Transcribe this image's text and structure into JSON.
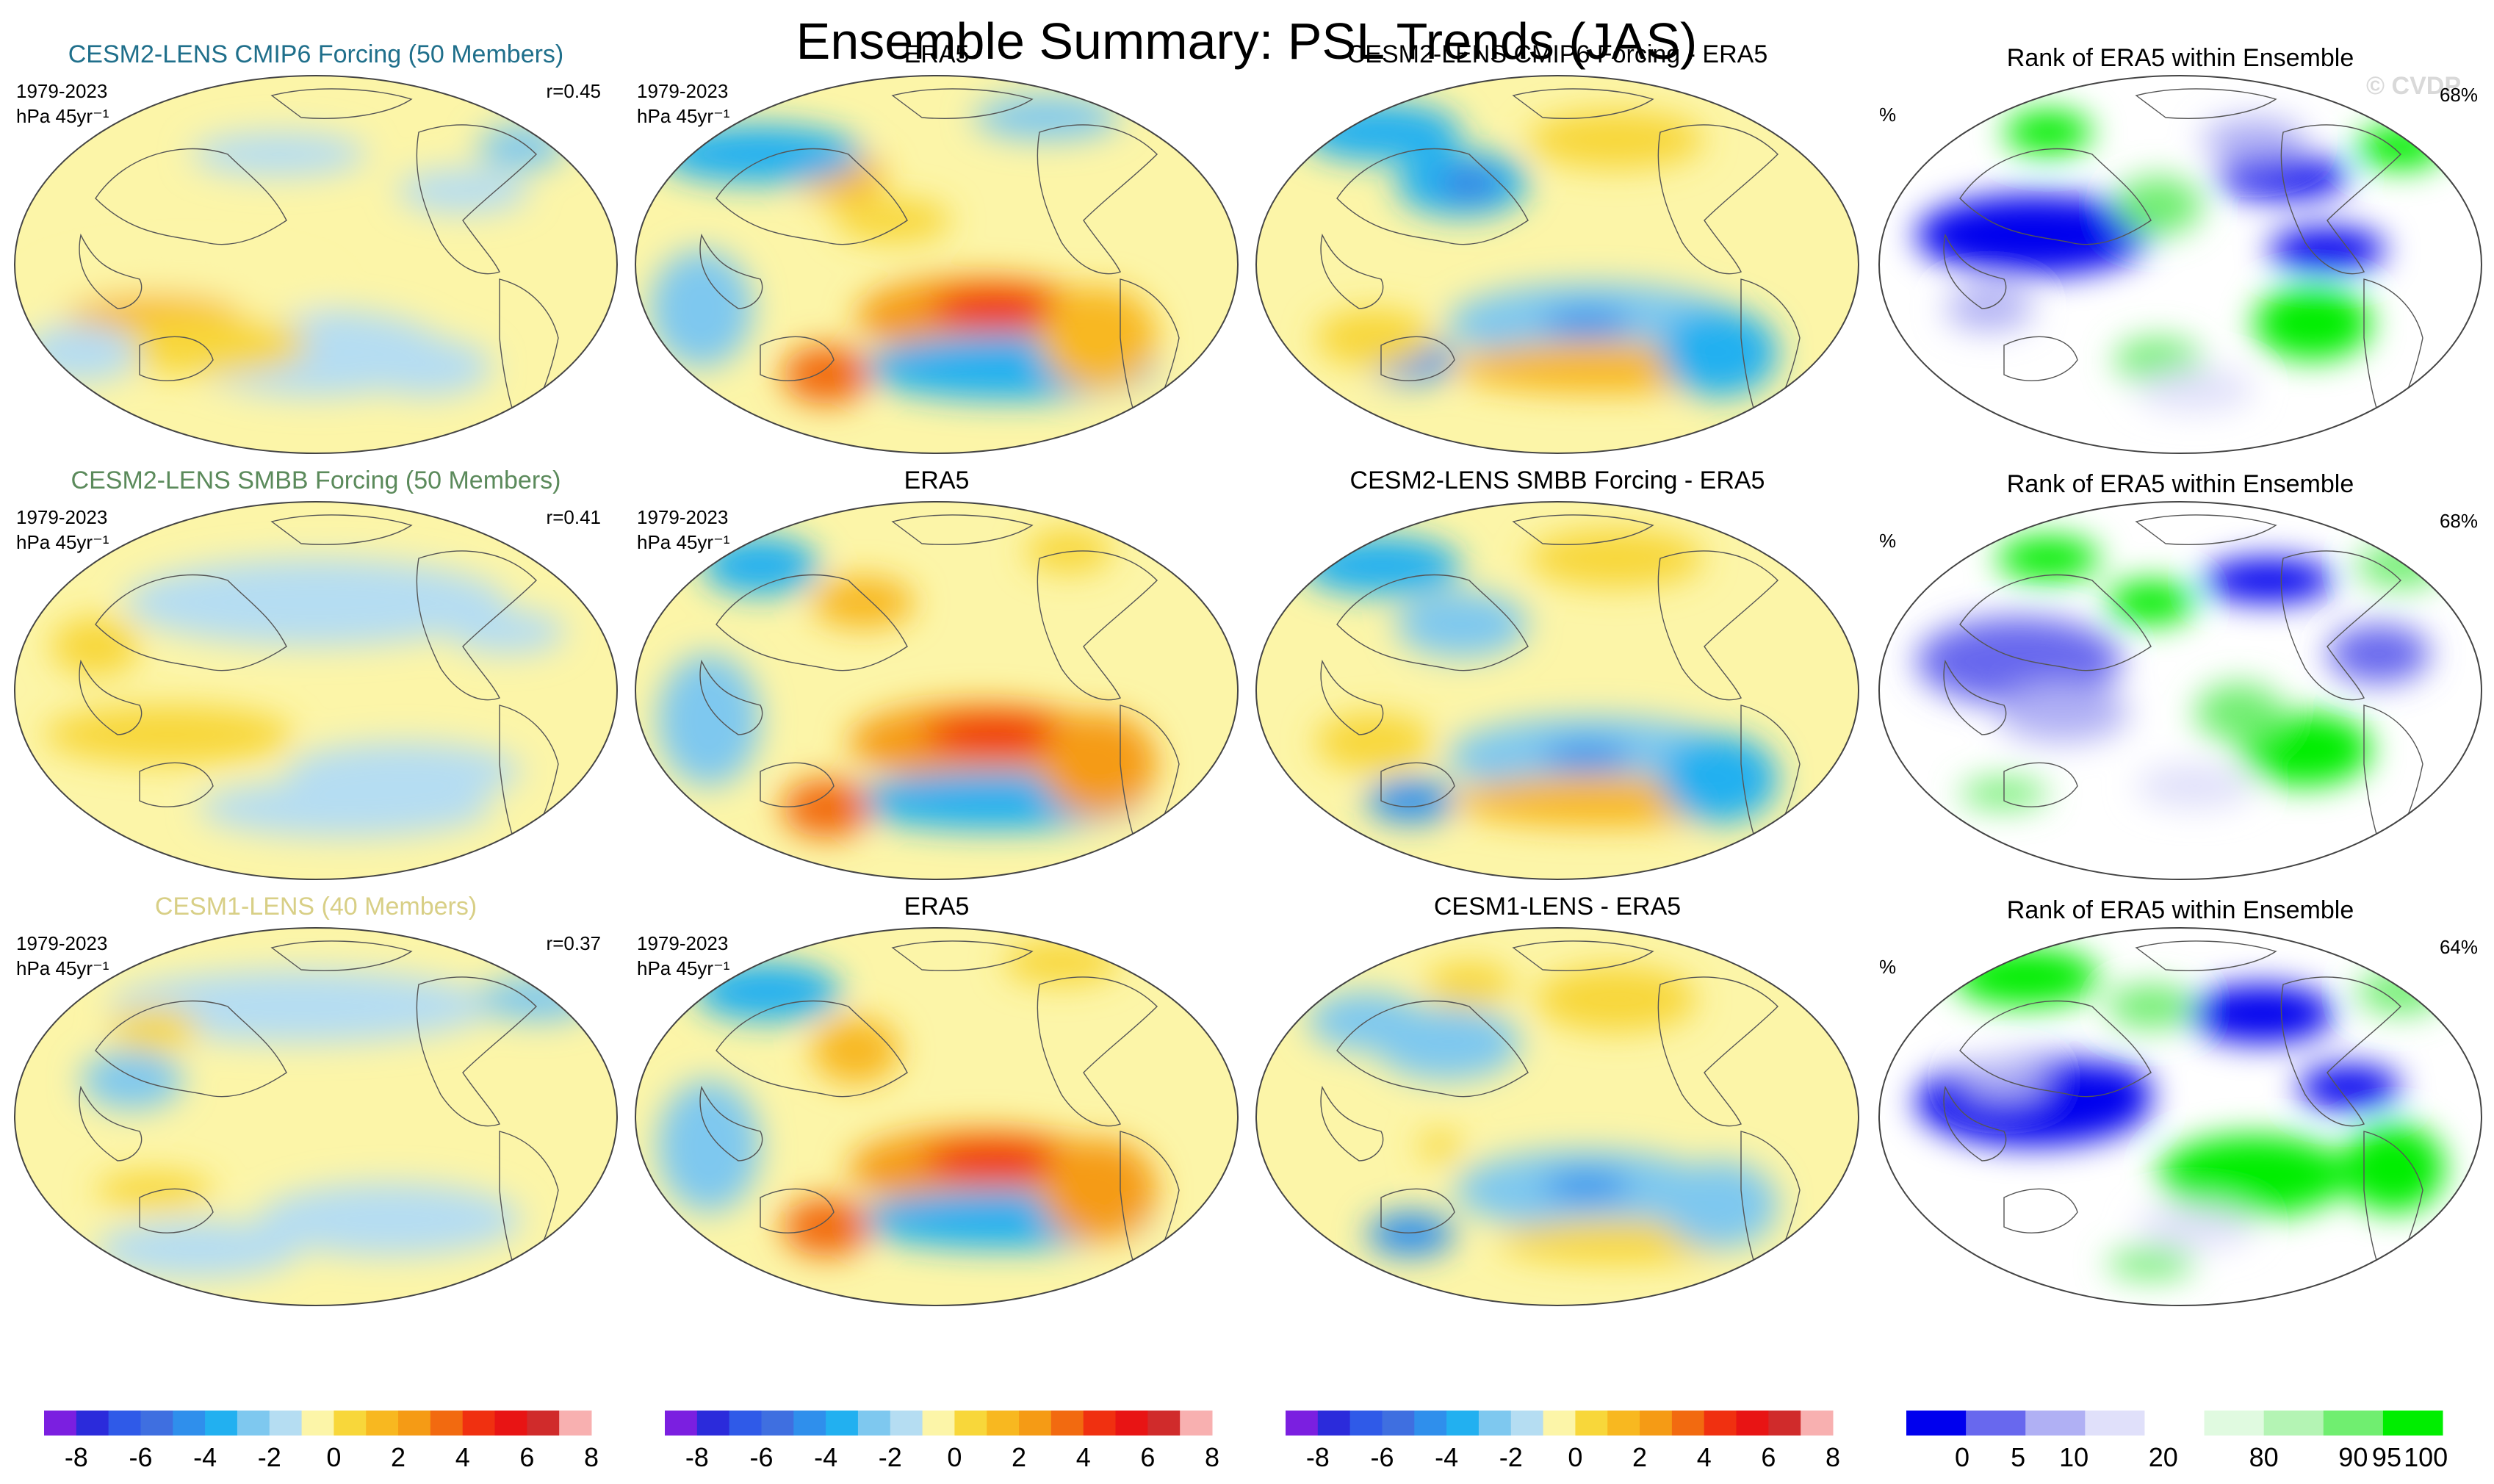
{
  "page_title": "Ensemble Summary: PSL Trends (JAS)",
  "watermark": "© CVDP",
  "chart_data": {
    "type": "heatmap",
    "variable": "PSL",
    "season": "JAS",
    "period": "1979-2023",
    "units": "hPa 45yr⁻¹",
    "rows": [
      {
        "model_title": "CESM2-LENS CMIP6 Forcing (50 Members)",
        "model_color": "#1f6f8b",
        "period": "1979-2023",
        "units": "hPa 45yr⁻¹",
        "r_label": "r=0.45",
        "obs_title": "ERA5",
        "obs_period": "1979-2023",
        "obs_units": "hPa 45yr⁻¹",
        "diff_title": "CESM2-LENS CMIP6 Forcing - ERA5",
        "rank_title": "Rank of ERA5 within Ensemble",
        "rank_units": "%",
        "rank_pct": "68%"
      },
      {
        "model_title": "CESM2-LENS SMBB Forcing (50 Members)",
        "model_color": "#5b8a5b",
        "period": "1979-2023",
        "units": "hPa 45yr⁻¹",
        "r_label": "r=0.41",
        "obs_title": "ERA5",
        "obs_period": "1979-2023",
        "obs_units": "hPa 45yr⁻¹",
        "diff_title": "CESM2-LENS SMBB Forcing - ERA5",
        "rank_title": "Rank of ERA5 within Ensemble",
        "rank_units": "%",
        "rank_pct": "68%"
      },
      {
        "model_title": "CESM1-LENS (40 Members)",
        "model_color": "#d8cf86",
        "period": "1979-2023",
        "units": "hPa 45yr⁻¹",
        "r_label": "r=0.37",
        "obs_title": "ERA5",
        "obs_period": "1979-2023",
        "obs_units": "hPa 45yr⁻¹",
        "diff_title": "CESM1-LENS - ERA5",
        "rank_title": "Rank of ERA5 within Ensemble",
        "rank_units": "%",
        "rank_pct": "64%"
      }
    ],
    "trend_colorbar": {
      "colors": [
        "#7b1fe0",
        "#2b2bdb",
        "#2f5ae8",
        "#3f6fe0",
        "#2f8fec",
        "#22b0f0",
        "#7ec8ef",
        "#b5ddf2",
        "#fcf5a8",
        "#f8d73a",
        "#f8b820",
        "#f59b15",
        "#f26a10",
        "#f03010",
        "#e81414",
        "#d02b2b",
        "#f8b0b0"
      ],
      "ticks": [
        "-8",
        "-6",
        "-4",
        "-2",
        "0",
        "2",
        "4",
        "6",
        "8"
      ]
    },
    "rank_colorbar": {
      "colors": [
        "#0000ee",
        "#6868ee",
        "#b0b0f4",
        "#e0e0fa",
        "#ffffff",
        "#e0fae0",
        "#b4f4b4",
        "#70ee70",
        "#00ee00"
      ],
      "ticks": [
        "0",
        "5",
        "10",
        "20",
        "80",
        "90",
        "95",
        "100"
      ]
    }
  }
}
